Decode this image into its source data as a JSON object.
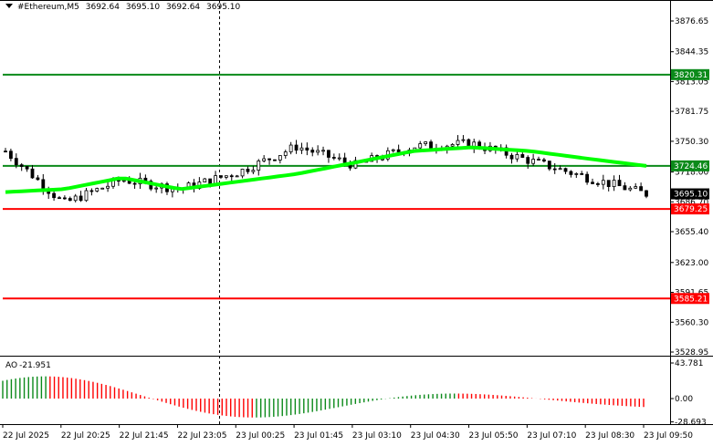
{
  "header": {
    "symbol": "#Ethereum,M5",
    "open": "3692.64",
    "high": "3695.10",
    "low": "3692.64",
    "close": "3695.10"
  },
  "price_axis": [
    "3876.65",
    "3844.35",
    "3813.05",
    "3781.75",
    "3750.30",
    "3718.00",
    "3686.70",
    "3655.40",
    "3623.00",
    "3591.65",
    "3560.30",
    "3528.95"
  ],
  "levels": [
    {
      "label": "3820.31",
      "color": "#0b8a1a"
    },
    {
      "label": "3724.46",
      "color": "#0b8a1a"
    },
    {
      "label": "3679.25",
      "color": "#ff0000"
    },
    {
      "label": "3585.21",
      "color": "#ff0000"
    }
  ],
  "current_price": "3695.10",
  "indicator": {
    "name": "AO",
    "value": "-21.951",
    "axis": [
      "43.781",
      "0.00",
      "-28.693"
    ],
    "up_color": "#0b8a1a",
    "down_color": "#ff0000"
  },
  "time_axis": [
    "22 Jul 2025",
    "22 Jul 20:25",
    "22 Jul 21:45",
    "22 Jul 23:05",
    "23 Jul 00:25",
    "23 Jul 01:45",
    "23 Jul 03:10",
    "23 Jul 04:30",
    "23 Jul 05:50",
    "23 Jul 07:10",
    "23 Jul 08:30",
    "23 Jul 09:50"
  ],
  "ma_color": "#00ff00",
  "chart_data": {
    "type": "candlestick",
    "x": [
      "22 Jul 2025",
      "22 Jul 20:25",
      "22 Jul 21:45",
      "22 Jul 23:05",
      "23 Jul 00:25",
      "23 Jul 01:45",
      "23 Jul 03:10",
      "23 Jul 04:30",
      "23 Jul 05:50",
      "23 Jul 07:10",
      "23 Jul 08:30",
      "23 Jul 09:50"
    ],
    "close": [
      3740,
      3685,
      3710,
      3700,
      3718,
      3745,
      3725,
      3745,
      3748,
      3730,
      3712,
      3695.1
    ],
    "moving_average": [
      3697,
      3700,
      3712,
      3700,
      3708,
      3716,
      3728,
      3740,
      3744,
      3740,
      3732,
      3724.46
    ],
    "ylim": [
      3528.95,
      3890
    ]
  }
}
